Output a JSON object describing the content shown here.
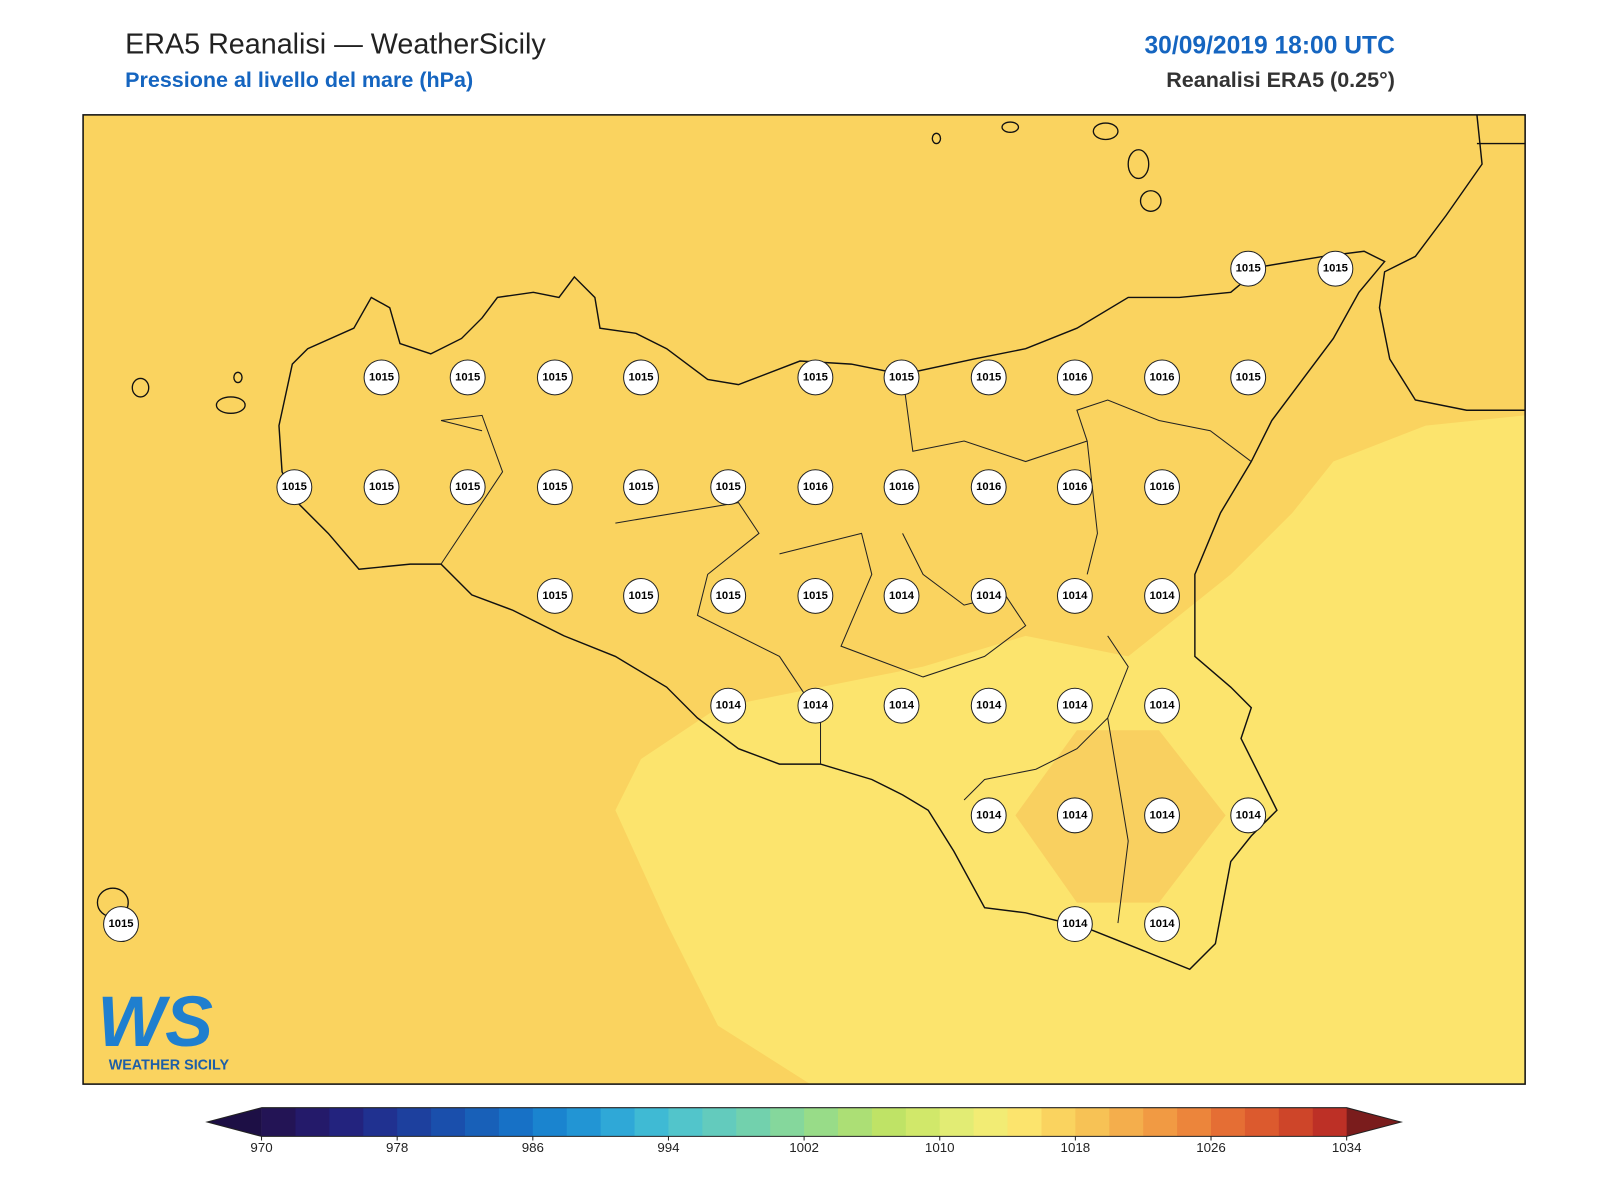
{
  "header": {
    "title": "ERA5 Reanalisi — WeatherSicily",
    "subtitle": "Pressione al livello del mare (hPa)",
    "date": "30/09/2019 18:00 UTC",
    "source": "Reanalisi ERA5 (0.25°)"
  },
  "stations": [
    "1015",
    "1015",
    "1015",
    "1015",
    "1015",
    "1015",
    "1015",
    "1015",
    "1015",
    "1016",
    "1016",
    "1015",
    "1015",
    "1015",
    "1015",
    "1015",
    "1015",
    "1015",
    "1016",
    "1016",
    "1016",
    "1016",
    "1016",
    "1015",
    "1015",
    "1015",
    "1015",
    "1014",
    "1014",
    "1014",
    "1014",
    "1014",
    "1014",
    "1014",
    "1014",
    "1014",
    "1014",
    "1014",
    "1014",
    "1014",
    "1014",
    "1015",
    "1014",
    "1014"
  ],
  "logo": {
    "mark": "WS",
    "name": "WEATHER SICILY"
  },
  "colorbar": {
    "range": [
      970,
      1034
    ],
    "ticks": [
      970,
      978,
      986,
      994,
      1002,
      1010,
      1018,
      1026,
      1034
    ],
    "under_color": "#1d0f45",
    "over_color": "#7a1c1c",
    "colors": [
      "#231455",
      "#241a6a",
      "#23237e",
      "#203190",
      "#1d409e",
      "#1a4fac",
      "#1860b8",
      "#1771c6",
      "#1a84cf",
      "#2295d4",
      "#2fa8d7",
      "#3fbad4",
      "#52c5cb",
      "#63cbbd",
      "#72d1ad",
      "#85d79c",
      "#98dc88",
      "#acdf75",
      "#bfe366",
      "#d1e86a",
      "#e2ec74",
      "#f2ec74",
      "#fce46d",
      "#fad35f",
      "#f7c255",
      "#f4ae4c",
      "#f19a43",
      "#ec853b",
      "#e56e34",
      "#dc5a2e",
      "#ce4529",
      "#bd3026"
    ]
  }
}
